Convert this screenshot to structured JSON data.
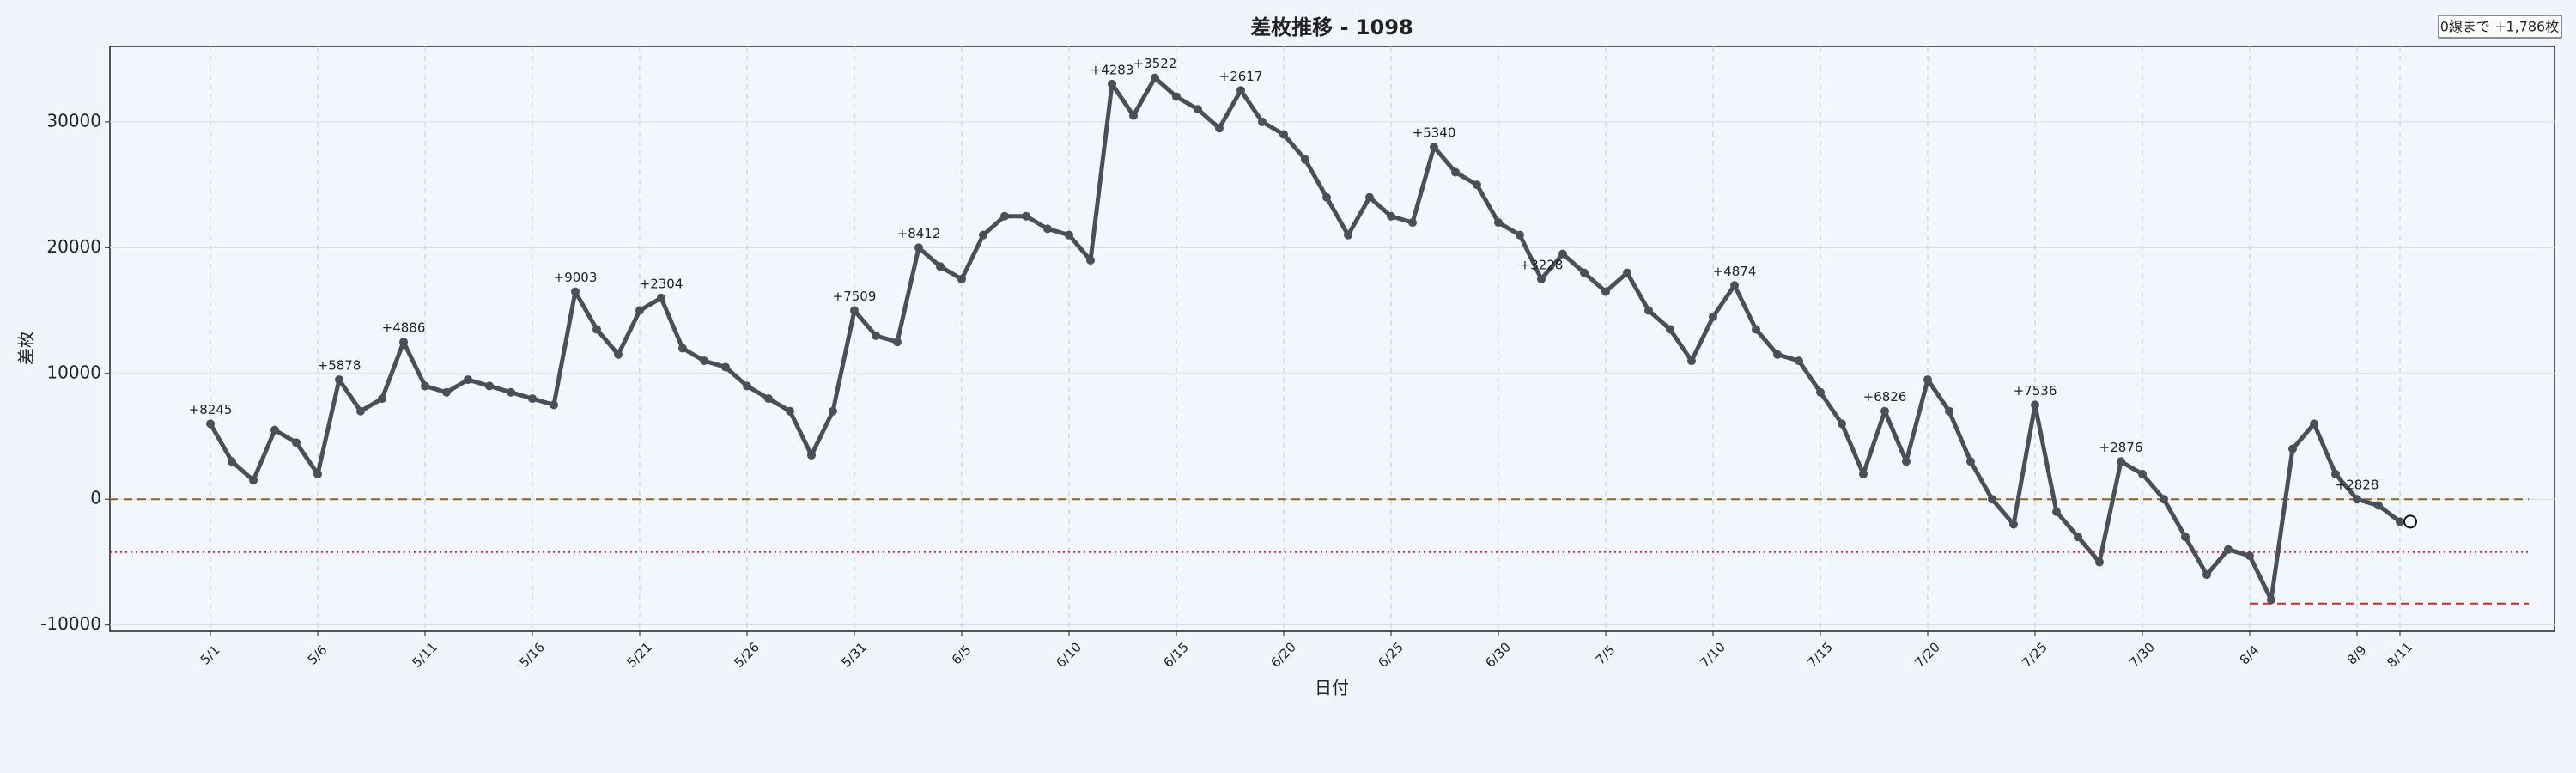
{
  "chart_data": {
    "type": "line",
    "title": "差枚推移 - 1098",
    "note": "0線まで +1,786枚",
    "x_label": "日付",
    "y_label": "差枚",
    "categories": [
      "5/1",
      null,
      null,
      null,
      null,
      "5/6",
      null,
      null,
      null,
      null,
      "5/11",
      null,
      null,
      null,
      null,
      "5/16",
      null,
      null,
      null,
      null,
      "5/21",
      null,
      null,
      null,
      null,
      "5/26",
      null,
      null,
      null,
      null,
      "5/31",
      null,
      null,
      null,
      null,
      "6/5",
      null,
      null,
      null,
      null,
      "6/10",
      null,
      null,
      null,
      null,
      "6/15",
      null,
      null,
      null,
      null,
      "6/20",
      null,
      null,
      null,
      null,
      "6/25",
      null,
      null,
      null,
      null,
      "6/30",
      null,
      null,
      null,
      null,
      "7/5",
      null,
      null,
      null,
      null,
      "7/10",
      null,
      null,
      null,
      null,
      "7/15",
      null,
      null,
      null,
      null,
      "7/20",
      null,
      null,
      null,
      null,
      "7/25",
      null,
      null,
      null,
      null,
      "7/30",
      null,
      null,
      null,
      null,
      "8/4",
      null,
      null,
      null,
      null,
      "8/9",
      null,
      "8/11"
    ],
    "red_ticks": [
      "6/5",
      "6/15",
      "6/25",
      "7/5",
      "7/15",
      "7/25"
    ],
    "tick_color": "#e00000",
    "color": "#4a4f5a",
    "values": [
      6000,
      3000,
      1500,
      5500,
      4500,
      2000,
      9500,
      7000,
      8000,
      12500,
      9000,
      8500,
      9500,
      9000,
      8500,
      8000,
      7500,
      16500,
      13500,
      11500,
      15000,
      16000,
      12000,
      11000,
      10500,
      9000,
      8000,
      7000,
      3500,
      7000,
      15000,
      13000,
      12500,
      20000,
      18500,
      17500,
      21000,
      22500,
      22500,
      21500,
      21000,
      19000,
      33000,
      30500,
      33500,
      32000,
      31000,
      29500,
      32500,
      30000,
      29000,
      27000,
      24000,
      21000,
      24000,
      22500,
      22000,
      28000,
      26000,
      25000,
      22000,
      21000,
      17500,
      19500,
      18000,
      16500,
      18000,
      15000,
      13500,
      11000,
      14500,
      17000,
      13500,
      11500,
      11000,
      8500,
      6000,
      2000,
      7000,
      3000,
      9500,
      7000,
      3000,
      0,
      -2000,
      7500,
      -1000,
      -3000,
      -5000,
      3000,
      2000,
      0,
      -3000,
      -6000,
      -4000,
      -4500,
      -8000,
      4000,
      6000,
      2000,
      0,
      -500,
      -1786
    ],
    "annotations": [
      "+8245",
      null,
      null,
      null,
      null,
      null,
      "+5878",
      null,
      null,
      "+4886",
      null,
      null,
      null,
      null,
      null,
      null,
      null,
      "+9003",
      null,
      null,
      null,
      "+2304",
      null,
      null,
      null,
      null,
      null,
      null,
      null,
      null,
      "+7509",
      null,
      null,
      "+8412",
      null,
      null,
      null,
      null,
      null,
      null,
      null,
      null,
      "+4283",
      null,
      "+3522",
      null,
      null,
      null,
      "+2617",
      null,
      null,
      null,
      null,
      null,
      null,
      null,
      null,
      "+5340",
      null,
      null,
      null,
      null,
      "+3228",
      null,
      null,
      null,
      null,
      null,
      null,
      null,
      null,
      "+4874",
      null,
      null,
      null,
      null,
      null,
      null,
      "+6826",
      null,
      null,
      null,
      null,
      null,
      null,
      "+7536",
      null,
      null,
      null,
      "+2876",
      null,
      null,
      null,
      null,
      null,
      null,
      null,
      null,
      null,
      null,
      "+2828",
      null,
      null
    ],
    "hlines": [
      {
        "value": 0,
        "color": "#8b6914",
        "style": "dashed"
      },
      {
        "value": -4200,
        "color": "#d62728",
        "style": "dotted"
      },
      {
        "value": -8300,
        "color": "#d62728",
        "style": "dashed",
        "start": "8/4"
      }
    ],
    "ylim": [
      -10500,
      36000
    ],
    "yticks": [
      -10000,
      0,
      10000,
      20000,
      30000
    ],
    "grid": true
  }
}
